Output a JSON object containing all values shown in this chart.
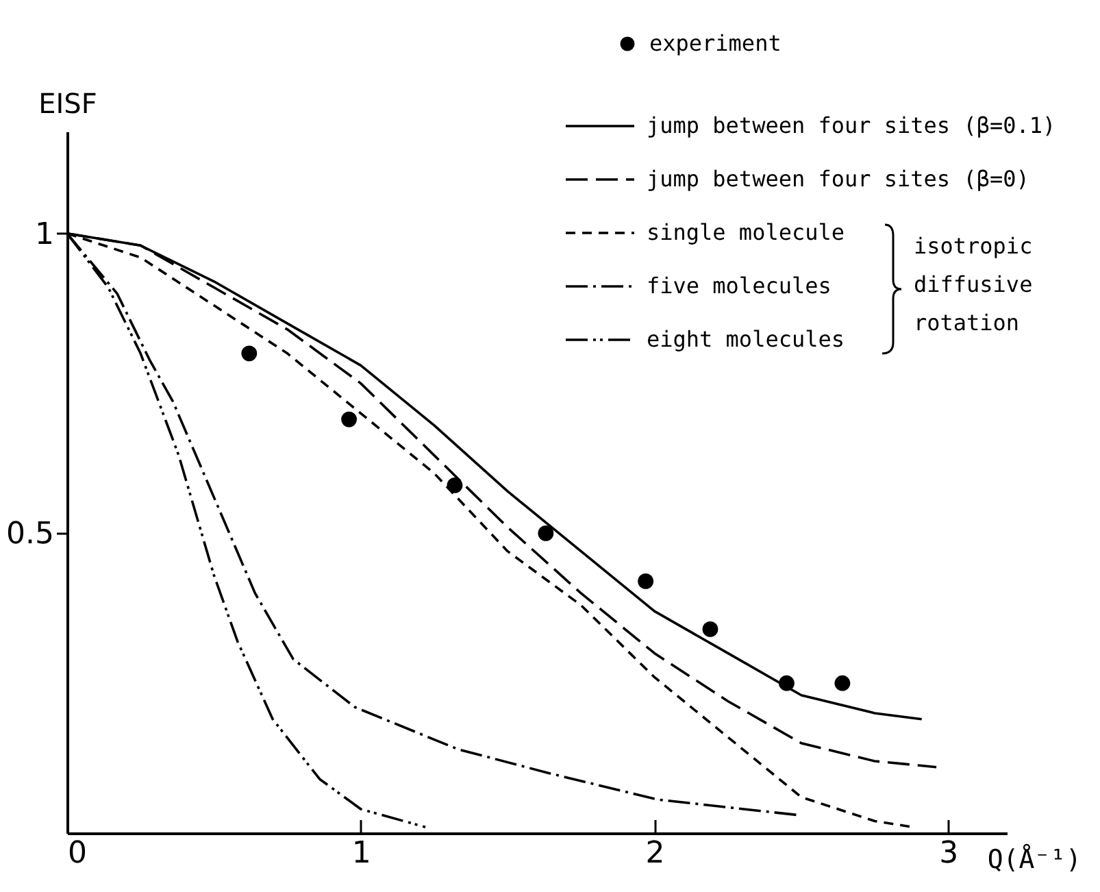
{
  "chart_data": {
    "type": "line",
    "xlabel": "Q(Å⁻¹)",
    "ylabel": "EISF",
    "xlim": [
      0,
      3.2
    ],
    "ylim": [
      0,
      1.17
    ],
    "xticks": [
      0,
      1,
      2,
      3
    ],
    "yticks": [
      0.5,
      1
    ],
    "legend": "top right",
    "annotations": [
      "isotropic diffusive rotation"
    ],
    "series": [
      {
        "name": "experiment",
        "type": "scatter",
        "marker": "circle",
        "color": "#000000",
        "x": [
          0.62,
          0.96,
          1.32,
          1.63,
          1.97,
          2.19,
          2.45,
          2.64
        ],
        "values": [
          0.8,
          0.69,
          0.58,
          0.5,
          0.42,
          0.34,
          0.25,
          0.25
        ]
      },
      {
        "name": "jump between four sites (β=0.1)",
        "line_style": "solid",
        "color": "#000000",
        "x": [
          0,
          0.25,
          0.5,
          0.75,
          1,
          1.25,
          1.5,
          1.75,
          2,
          2.25,
          2.5,
          2.75,
          2.91
        ],
        "values": [
          1,
          0.98,
          0.92,
          0.85,
          0.78,
          0.68,
          0.57,
          0.47,
          0.37,
          0.3,
          0.23,
          0.2,
          0.19
        ]
      },
      {
        "name": "jump between four sites (β=0)",
        "line_style": "dashed",
        "color": "#000000",
        "x": [
          0,
          0.25,
          0.5,
          0.75,
          1,
          1.25,
          1.5,
          1.75,
          2,
          2.25,
          2.5,
          2.75,
          2.96
        ],
        "values": [
          1,
          0.98,
          0.91,
          0.84,
          0.75,
          0.63,
          0.51,
          0.4,
          0.3,
          0.22,
          0.15,
          0.12,
          0.11
        ]
      },
      {
        "name": "single molecule",
        "line_style": "dotted",
        "color": "#000000",
        "x": [
          0,
          0.25,
          0.5,
          0.75,
          1,
          1.25,
          1.5,
          1.75,
          2,
          2.25,
          2.5,
          2.75,
          2.88
        ],
        "values": [
          1,
          0.96,
          0.88,
          0.8,
          0.7,
          0.6,
          0.47,
          0.38,
          0.26,
          0.16,
          0.06,
          0.02,
          0.01
        ]
      },
      {
        "name": "five molecules",
        "line_style": "dashdot",
        "color": "#000000",
        "x": [
          0,
          0.17,
          0.28,
          0.36,
          0.5,
          0.64,
          0.77,
          0.98,
          1.33,
          1.64,
          2.01,
          2.49
        ],
        "values": [
          1,
          0.9,
          0.79,
          0.72,
          0.56,
          0.4,
          0.29,
          0.21,
          0.14,
          0.1,
          0.056,
          0.03
        ]
      },
      {
        "name": "eight molecules",
        "line_style": "dashdotdot",
        "color": "#000000",
        "x": [
          0,
          0.14,
          0.25,
          0.38,
          0.5,
          0.58,
          0.7,
          0.86,
          1,
          1.22
        ],
        "values": [
          1,
          0.91,
          0.8,
          0.63,
          0.43,
          0.32,
          0.19,
          0.09,
          0.04,
          0.01
        ]
      }
    ]
  }
}
